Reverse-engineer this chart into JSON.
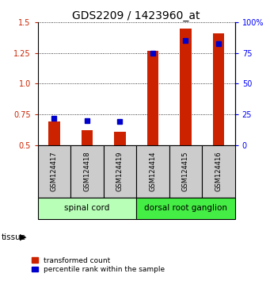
{
  "title": "GDS2209 / 1423960_at",
  "samples": [
    "GSM124417",
    "GSM124418",
    "GSM124419",
    "GSM124414",
    "GSM124415",
    "GSM124416"
  ],
  "red_values": [
    0.69,
    0.62,
    0.61,
    1.27,
    1.45,
    1.41
  ],
  "blue_percentile": [
    22,
    20,
    19,
    75,
    85,
    83
  ],
  "ylim": [
    0.5,
    1.5
  ],
  "yticks_left": [
    0.5,
    0.75,
    1.0,
    1.25,
    1.5
  ],
  "yticks_right": [
    0,
    25,
    50,
    75,
    100
  ],
  "groups": [
    {
      "label": "spinal cord",
      "indices": [
        0,
        1,
        2
      ],
      "color": "#b8ffb8"
    },
    {
      "label": "dorsal root ganglion",
      "indices": [
        3,
        4,
        5
      ],
      "color": "#44ee44"
    }
  ],
  "tissue_label": "tissue",
  "legend_red": "transformed count",
  "legend_blue": "percentile rank within the sample",
  "red_color": "#cc2200",
  "blue_color": "#0000cc",
  "bar_width": 0.35,
  "dot_size": 28,
  "background_color": "#ffffff",
  "sample_box_color": "#cccccc",
  "title_fontsize": 10,
  "tick_fontsize": 7,
  "sample_fontsize": 6,
  "tissue_fontsize": 7.5,
  "legend_fontsize": 6.5
}
